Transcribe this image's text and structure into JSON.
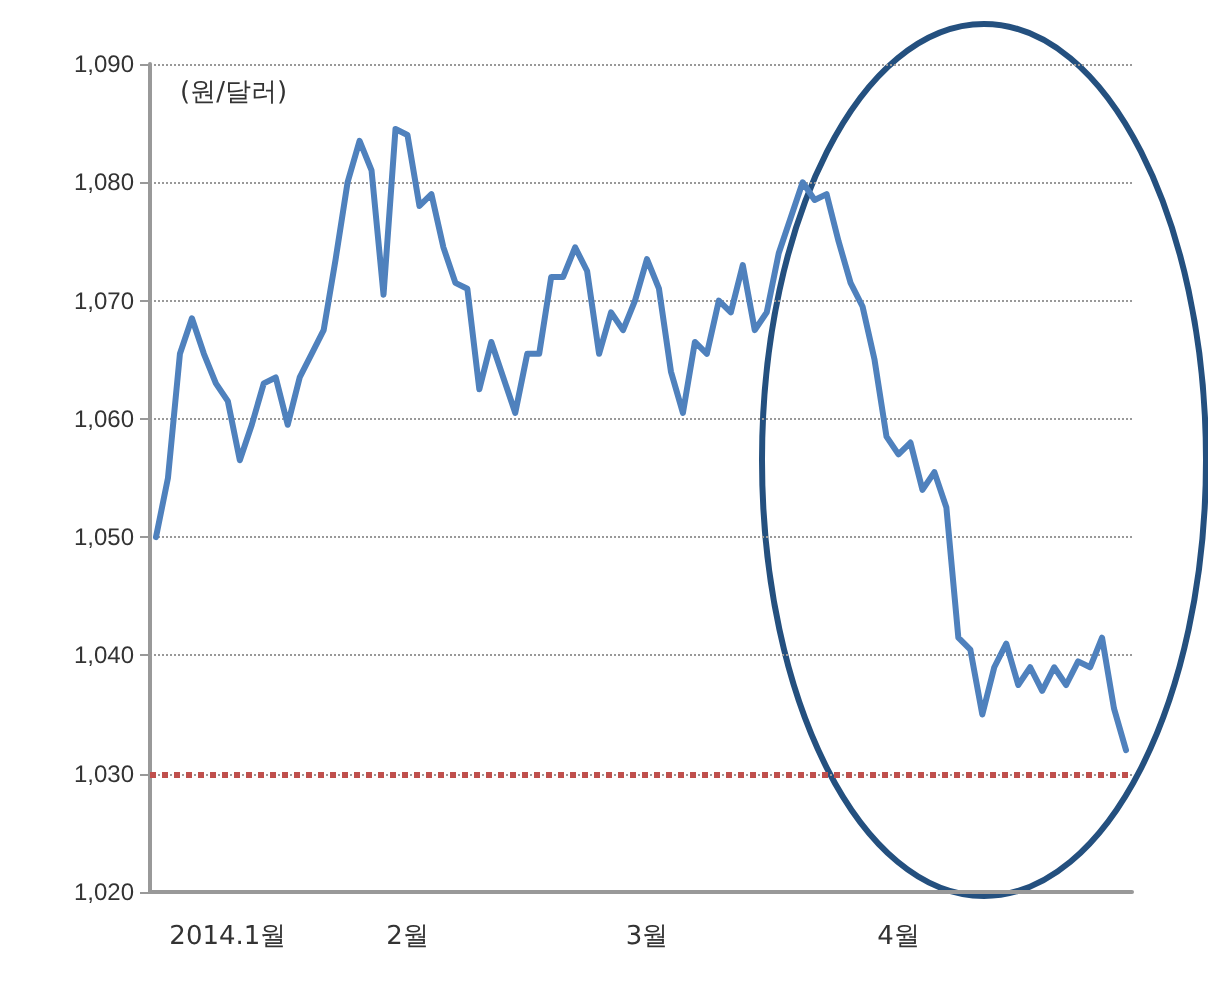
{
  "chart_data": {
    "type": "line",
    "ylabel": "(원/달러)",
    "categories": [
      null,
      null,
      null,
      null,
      null,
      null,
      "2014.1월",
      null,
      null,
      null,
      null,
      null,
      null,
      null,
      null,
      null,
      null,
      null,
      null,
      null,
      null,
      "2월",
      null,
      null,
      null,
      null,
      null,
      null,
      null,
      null,
      null,
      null,
      null,
      null,
      null,
      null,
      null,
      null,
      null,
      null,
      null,
      "3월",
      null,
      null,
      null,
      null,
      null,
      null,
      null,
      null,
      null,
      null,
      null,
      null,
      null,
      null,
      null,
      null,
      null,
      null,
      null,
      null,
      "4월",
      null,
      null,
      null,
      null,
      null,
      null,
      null,
      null,
      null,
      null,
      null,
      null,
      null,
      null,
      null,
      null,
      null,
      null,
      null
    ],
    "series": [
      {
        "color": "#4f81bd",
        "values": [
          1050,
          1055,
          1065.5,
          1068.5,
          1065.5,
          1063,
          1061.5,
          1056.5,
          1059.5,
          1063,
          1063.5,
          1059.5,
          1063.5,
          1065.5,
          1067.5,
          1073.5,
          1080,
          1083.5,
          1081,
          1070.5,
          1084.5,
          1084,
          1078,
          1079,
          1074.5,
          1071.5,
          1071,
          1062.5,
          1066.5,
          1063.5,
          1060.5,
          1065.5,
          1065.5,
          1072,
          1072,
          1074.5,
          1072.5,
          1065.5,
          1069,
          1067.5,
          1070,
          1073.5,
          1071,
          1064,
          1060.5,
          1066.5,
          1065.5,
          1070,
          1069,
          1073,
          1067.5,
          1069,
          1074,
          1077,
          1080,
          1078.5,
          1079,
          1075,
          1071.5,
          1069.5,
          1065,
          1058.5,
          1057,
          1058,
          1054,
          1055.5,
          1052.5,
          1041.5,
          1040.5,
          1035,
          1039,
          1041,
          1037.5,
          1039,
          1037,
          1039,
          1037.5,
          1039.5,
          1039,
          1041.5,
          1035.5,
          1032
        ]
      }
    ],
    "ylim": [
      1020,
      1090
    ],
    "yticks": [
      {
        "value": 1020,
        "label": "1,020"
      },
      {
        "value": 1030,
        "label": "1,030"
      },
      {
        "value": 1040,
        "label": "1,040"
      },
      {
        "value": 1050,
        "label": "1,050"
      },
      {
        "value": 1060,
        "label": "1,060"
      },
      {
        "value": 1070,
        "label": "1,070"
      },
      {
        "value": 1080,
        "label": "1,080"
      },
      {
        "value": 1090,
        "label": "1,090"
      }
    ],
    "grid": "y",
    "marker": "none",
    "line_style": "solid",
    "ref_lines": [
      {
        "axis": "y",
        "value": 1030,
        "color": "#c0504d",
        "line_style": "dotted"
      }
    ]
  }
}
